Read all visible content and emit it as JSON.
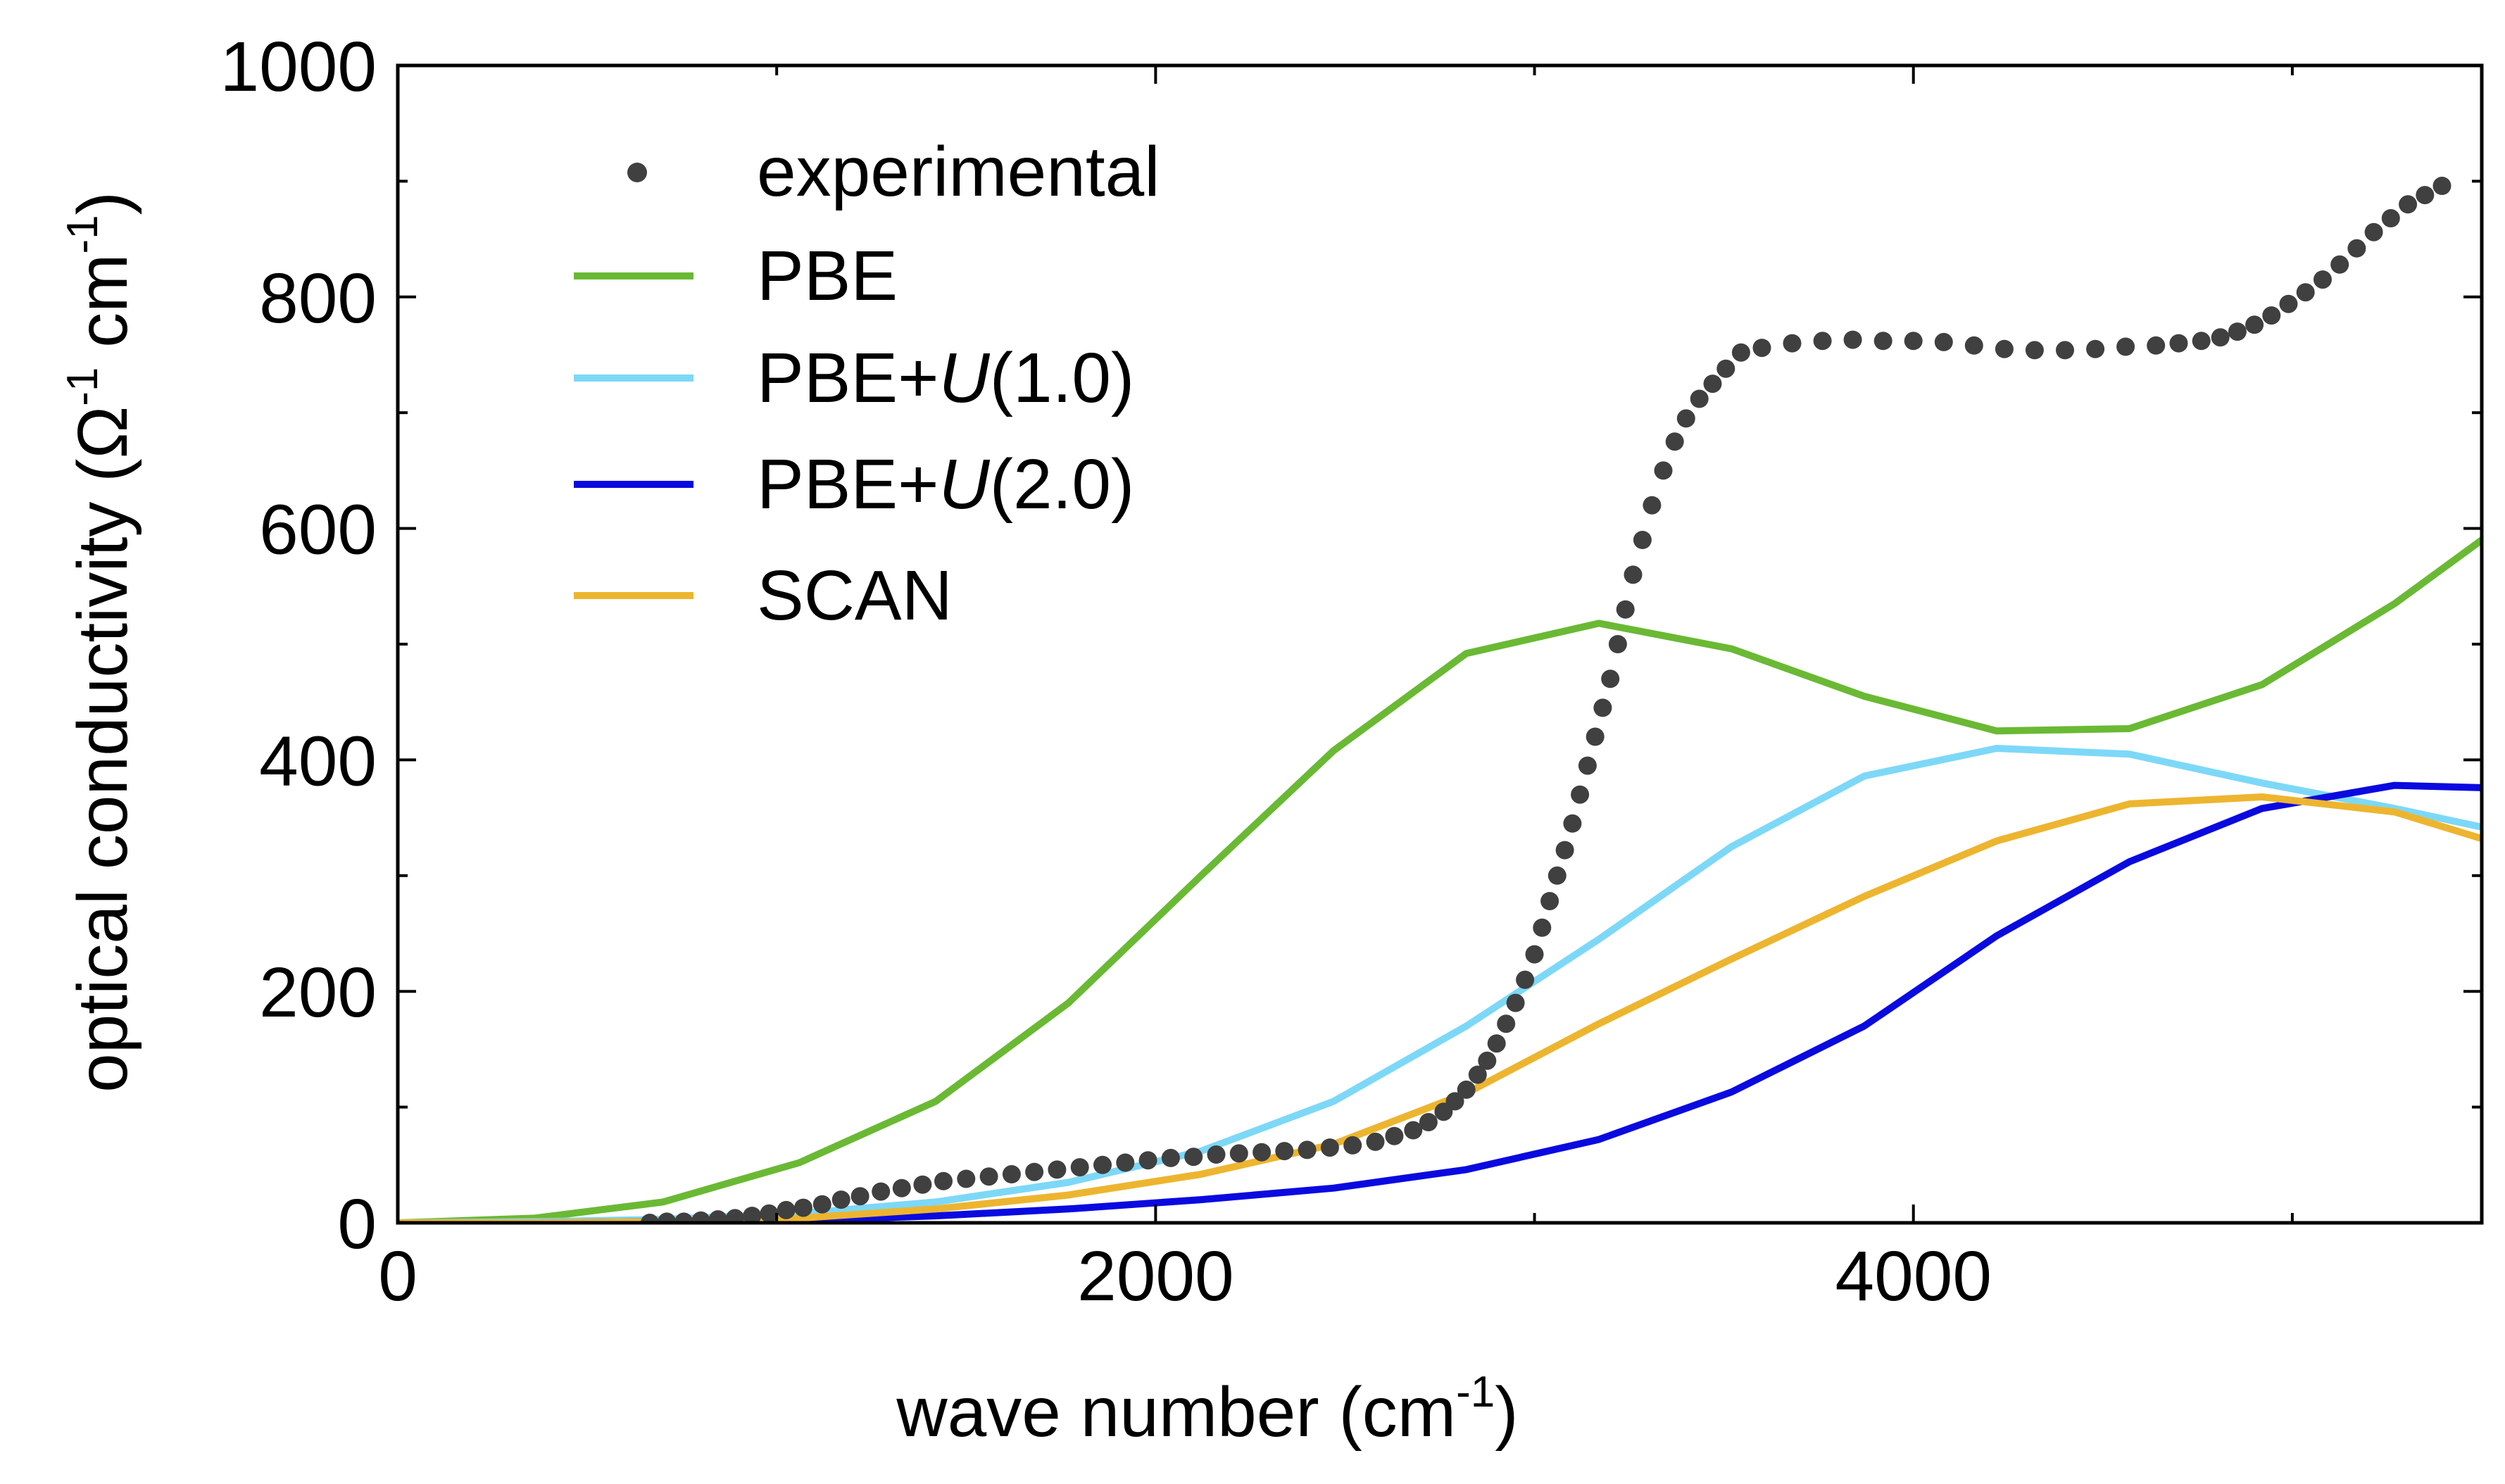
{
  "chart_data": {
    "type": "line",
    "title": "",
    "xlabel": "wave number (cm",
    "xlabel_sup": "-1",
    "xlabel_end": ")",
    "ylabel": "optical conductivity (Ω",
    "ylabel_sup1": "-1",
    "ylabel_mid": " cm",
    "ylabel_sup2": "-1",
    "ylabel_end": ")",
    "xlim": [
      0,
      5500
    ],
    "ylim": [
      0,
      1000
    ],
    "xticks": [
      0,
      2000,
      4000
    ],
    "xticks_minor": [
      1000,
      3000,
      5000
    ],
    "yticks": [
      0,
      200,
      400,
      600,
      800,
      1000
    ],
    "yticks_minor": [
      100,
      300,
      500,
      700,
      900
    ],
    "xtick_labels": [
      "0",
      "2000",
      "4000"
    ],
    "ytick_labels": [
      "0",
      "200",
      "400",
      "600",
      "800",
      "1000"
    ],
    "legend_position": "top-left",
    "series": [
      {
        "name": "experimental",
        "style": "dots",
        "color": "#404040",
        "x": [
          665,
          710,
          755,
          800,
          845,
          890,
          935,
          980,
          1025,
          1070,
          1120,
          1170,
          1220,
          1275,
          1330,
          1385,
          1440,
          1500,
          1560,
          1620,
          1680,
          1740,
          1800,
          1860,
          1920,
          1980,
          2040,
          2100,
          2160,
          2220,
          2280,
          2340,
          2400,
          2460,
          2520,
          2580,
          2630,
          2680,
          2720,
          2760,
          2790,
          2820,
          2850,
          2875,
          2900,
          2925,
          2950,
          2975,
          3000,
          3020,
          3040,
          3060,
          3080,
          3100,
          3120,
          3140,
          3160,
          3180,
          3200,
          3220,
          3240,
          3260,
          3285,
          3310,
          3340,
          3370,
          3400,
          3435,
          3470,
          3505,
          3545,
          3600,
          3680,
          3760,
          3840,
          3920,
          4000,
          4080,
          4160,
          4240,
          4320,
          4400,
          4480,
          4560,
          4640,
          4700,
          4760,
          4810,
          4855,
          4900,
          4945,
          4990,
          5035,
          5080,
          5125,
          5170,
          5215,
          5260,
          5305,
          5350,
          5395
        ],
        "y": [
          0,
          1,
          1,
          2,
          3,
          4,
          6,
          8,
          11,
          13,
          16,
          20,
          23,
          27,
          30,
          33,
          36,
          38,
          40,
          42,
          44,
          46,
          48,
          50,
          52,
          54,
          56,
          57,
          59,
          60,
          61,
          62,
          63,
          65,
          67,
          70,
          75,
          80,
          87,
          96,
          105,
          115,
          128,
          140,
          155,
          172,
          190,
          210,
          232,
          255,
          278,
          300,
          322,
          345,
          370,
          395,
          420,
          445,
          470,
          500,
          530,
          560,
          590,
          620,
          650,
          675,
          695,
          712,
          725,
          738,
          752,
          756,
          760,
          762,
          763,
          762,
          762,
          761,
          758,
          755,
          754,
          754,
          755,
          757,
          758,
          760,
          762,
          765,
          770,
          776,
          784,
          794,
          804,
          815,
          828,
          842,
          856,
          868,
          880,
          888,
          896
        ]
      },
      {
        "name": "PBE",
        "style": "line",
        "color": "#6ab934",
        "x": [
          0,
          360,
          700,
          1060,
          1420,
          1770,
          2120,
          2470,
          2820,
          3170,
          3520,
          3870,
          4220,
          4570,
          4920,
          5270,
          5500
        ],
        "y": [
          0,
          4,
          18,
          52,
          105,
          190,
          300,
          408,
          492,
          518,
          496,
          455,
          425,
          427,
          465,
          535,
          590
        ]
      },
      {
        "name": "PBE+U(1.0)",
        "name_plain": "PBE+",
        "name_italic": "U",
        "name_tail": "(1.0)",
        "style": "line",
        "color": "#7dd8f7",
        "x": [
          0,
          360,
          700,
          1060,
          1420,
          1770,
          2120,
          2470,
          2820,
          3170,
          3520,
          3870,
          4220,
          4570,
          4920,
          5270,
          5500
        ],
        "y": [
          0,
          1,
          3,
          8,
          18,
          35,
          62,
          105,
          170,
          245,
          325,
          386,
          410,
          405,
          380,
          358,
          342
        ]
      },
      {
        "name": "PBE+U(2.0)",
        "name_plain": "PBE+",
        "name_italic": "U",
        "name_tail": "(2.0)",
        "style": "line",
        "color": "#0a0ae0",
        "x": [
          0,
          360,
          700,
          1060,
          1420,
          1770,
          2120,
          2470,
          2820,
          3170,
          3520,
          3870,
          4220,
          4570,
          4920,
          5270,
          5500
        ],
        "y": [
          0,
          0,
          1,
          2,
          6,
          12,
          20,
          30,
          46,
          72,
          113,
          170,
          248,
          312,
          358,
          378,
          376
        ]
      },
      {
        "name": "SCAN",
        "style": "line",
        "color": "#edb52f",
        "x": [
          0,
          360,
          700,
          1060,
          1420,
          1770,
          2120,
          2470,
          2820,
          3170,
          3520,
          3870,
          4220,
          4570,
          4920,
          5270,
          5500
        ],
        "y": [
          0,
          0,
          1,
          4,
          12,
          24,
          42,
          68,
          112,
          172,
          228,
          282,
          330,
          362,
          368,
          355,
          332
        ]
      }
    ]
  }
}
